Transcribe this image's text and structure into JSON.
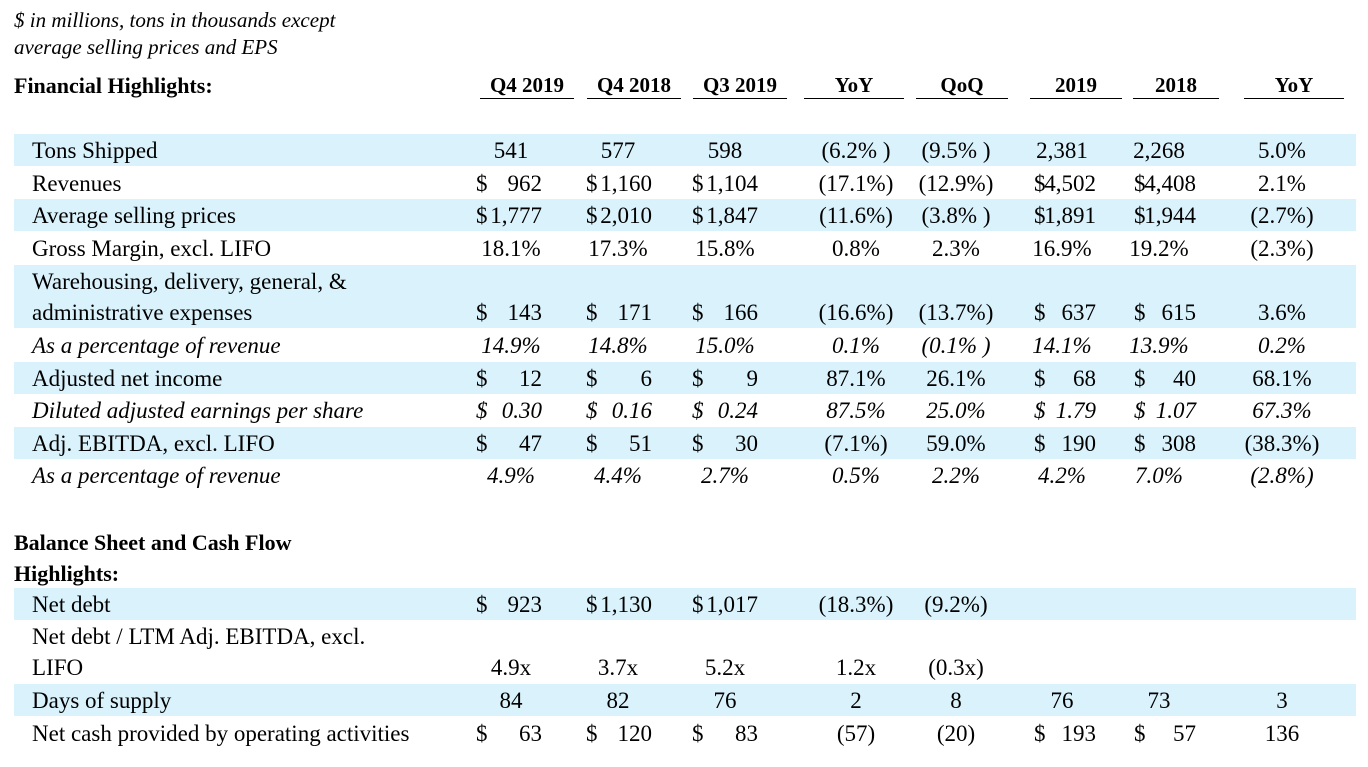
{
  "note": {
    "line1": "$ in millions, tons in thousands except",
    "line2": "average selling prices and EPS"
  },
  "sections": {
    "financial": "Financial Highlights:",
    "balance_line1": "Balance Sheet and Cash Flow",
    "balance_line2": "Highlights:"
  },
  "columns": [
    "Q4 2019",
    "Q4 2018",
    "Q3 2019",
    "YoY",
    "QoQ",
    "2019",
    "2018",
    "YoY"
  ],
  "financial_rows": [
    {
      "label": [
        "Tons Shipped"
      ],
      "cur": [
        "",
        "",
        "",
        "",
        ""
      ],
      "values": [
        "541",
        "577",
        "598",
        "(6.2% )",
        "(9.5% )",
        "2,381",
        "2,268",
        "5.0%"
      ]
    },
    {
      "label": [
        "Revenues"
      ],
      "cur": [
        "$",
        "$",
        "$",
        "$",
        "$"
      ],
      "values": [
        "962",
        "1,160",
        "1,104",
        "(17.1%)",
        "(12.9%)",
        "4,502",
        "4,408",
        "2.1%"
      ]
    },
    {
      "label": [
        "Average selling prices"
      ],
      "cur": [
        "$",
        "$",
        "$",
        "$",
        "$"
      ],
      "values": [
        "1,777",
        "2,010",
        "1,847",
        "(11.6%)",
        "(3.8% )",
        "1,891",
        "1,944",
        "(2.7%)"
      ]
    },
    {
      "label": [
        "Gross Margin, excl. LIFO"
      ],
      "cur": [
        "",
        "",
        "",
        "",
        ""
      ],
      "values": [
        "18.1%",
        "17.3%",
        "15.8%",
        "0.8%",
        "2.3%",
        "16.9%",
        "19.2%",
        "(2.3%)"
      ]
    },
    {
      "label": [
        "Warehousing, delivery, general, &",
        "administrative expenses"
      ],
      "cur": [
        "$",
        "$",
        "$",
        "$",
        "$"
      ],
      "values": [
        "143",
        "171",
        "166",
        "(16.6%)",
        "(13.7%)",
        "637",
        "615",
        "3.6%"
      ]
    },
    {
      "label": [
        "As a percentage of revenue"
      ],
      "cur": [
        "",
        "",
        "",
        "",
        ""
      ],
      "values": [
        "14.9%",
        "14.8%",
        "15.0%",
        "0.1%",
        "(0.1% )",
        "14.1%",
        "13.9%",
        "0.2%"
      ]
    },
    {
      "label": [
        "Adjusted net income"
      ],
      "cur": [
        "$",
        "$",
        "$",
        "$",
        "$"
      ],
      "values": [
        "12",
        "6",
        "9",
        "87.1%",
        "26.1%",
        "68",
        "40",
        "68.1%"
      ]
    },
    {
      "label": [
        "Diluted adjusted earnings per share"
      ],
      "cur": [
        "$",
        "$",
        "$",
        "$",
        "$"
      ],
      "values": [
        "0.30",
        "0.16",
        "0.24",
        "87.5%",
        "25.0%",
        "1.79",
        "1.07",
        "67.3%"
      ]
    },
    {
      "label": [
        "Adj. EBITDA, excl. LIFO"
      ],
      "cur": [
        "$",
        "$",
        "$",
        "$",
        "$"
      ],
      "values": [
        "47",
        "51",
        "30",
        "(7.1%)",
        "59.0%",
        "190",
        "308",
        "(38.3%)"
      ]
    },
    {
      "label": [
        "As a percentage of revenue"
      ],
      "cur": [
        "",
        "",
        "",
        "",
        ""
      ],
      "values": [
        "4.9%",
        "4.4%",
        "2.7%",
        "0.5%",
        "2.2%",
        "4.2%",
        "7.0%",
        "(2.8%)"
      ]
    }
  ],
  "balance_rows": [
    {
      "label": [
        "Net debt"
      ],
      "cur": [
        "$",
        "$",
        "$",
        "",
        ""
      ],
      "values": [
        "923",
        "1,130",
        "1,017",
        "(18.3%)",
        "(9.2%)",
        "",
        "",
        ""
      ]
    },
    {
      "label": [
        "Net debt / LTM Adj. EBITDA, excl.",
        "LIFO"
      ],
      "cur": [
        "",
        "",
        "",
        "",
        ""
      ],
      "values": [
        "4.9x",
        "3.7x",
        "5.2x",
        "1.2x",
        "(0.3x)",
        "",
        "",
        ""
      ]
    },
    {
      "label": [
        "Days of supply"
      ],
      "cur": [
        "",
        "",
        "",
        "",
        ""
      ],
      "values": [
        "84",
        "82",
        "76",
        "2",
        "8",
        "76",
        "73",
        "3"
      ]
    },
    {
      "label": [
        "Net cash provided by operating activities"
      ],
      "cur": [
        "$",
        "$",
        "$",
        "$",
        "$"
      ],
      "values": [
        "63",
        "120",
        "83",
        "(57)",
        "(20)",
        "193",
        "57",
        "136"
      ]
    }
  ]
}
